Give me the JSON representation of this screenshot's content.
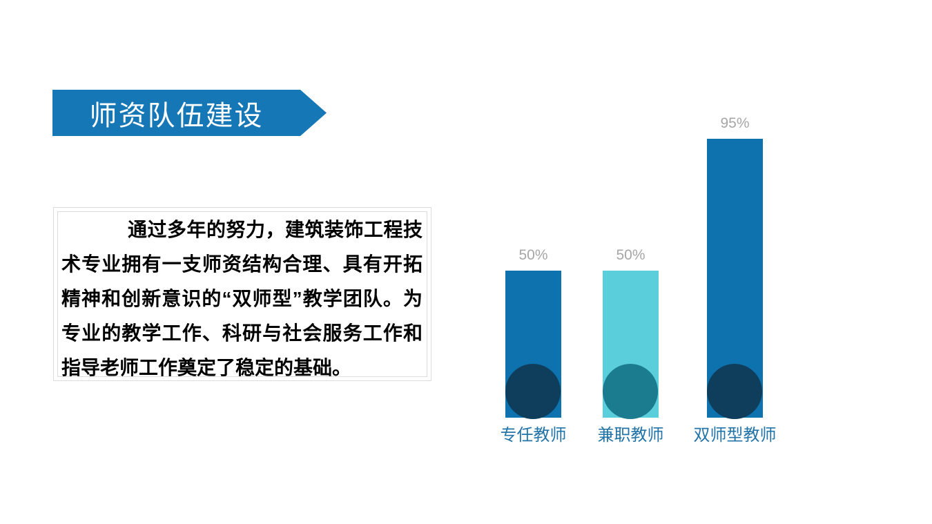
{
  "slide": {
    "background": "#ffffff",
    "banner": {
      "title": "师资队伍建设",
      "color": "#1577b5",
      "text_color": "#ffffff"
    },
    "body": {
      "text": "通过多年的努力，建筑装饰工程技术专业拥有一支师资结构合理、具有开拓精神和创新意识的“双师型”教学团队。为专业的教学工作、科研与社会服务工作和指导老师工作奠定了稳定的基础。",
      "border_color": "#dcdcdc",
      "text_color": "#000000"
    }
  },
  "chart_data": {
    "type": "bar",
    "orientation": "vertical",
    "title": "",
    "xlabel": "",
    "ylabel": "",
    "ylim": [
      0,
      100
    ],
    "grid": false,
    "legend": false,
    "categories": [
      "专任教师",
      "兼职教师",
      "双师型教师"
    ],
    "values": [
      50,
      50,
      95
    ],
    "value_labels": [
      "50%",
      "50%",
      "95%"
    ],
    "bar_colors": [
      "#0d72ad",
      "#5bcedc",
      "#0d72ad"
    ],
    "base_circle_colors": [
      "#0f3e5d",
      "#1b7c8f",
      "#0f3e5d"
    ],
    "value_label_color": "#a6a6a6",
    "category_label_color": "#2273a8"
  }
}
